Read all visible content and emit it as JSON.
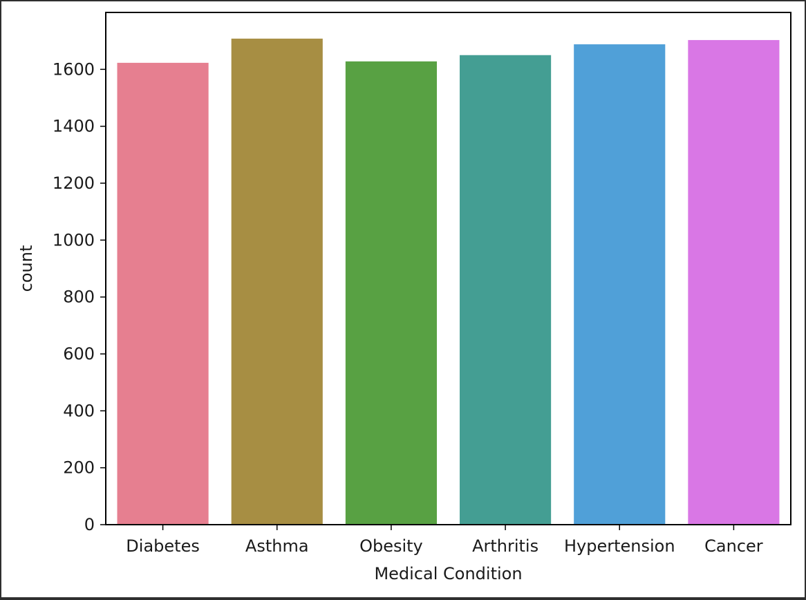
{
  "chart_data": {
    "type": "bar",
    "title": "",
    "xlabel": "Medical Condition",
    "ylabel": "count",
    "categories": [
      "Diabetes",
      "Asthma",
      "Obesity",
      "Arthritis",
      "Hypertension",
      "Cancer"
    ],
    "values": [
      1623,
      1708,
      1628,
      1650,
      1688,
      1703
    ],
    "colors": [
      "#e67f90",
      "#a78e43",
      "#58a143",
      "#449e93",
      "#50a0d8",
      "#d977e5"
    ],
    "ylim": [
      0,
      1800
    ],
    "yticks": [
      0,
      200,
      400,
      600,
      800,
      1000,
      1200,
      1400,
      1600
    ],
    "ytick_labels": [
      "0",
      "200",
      "400",
      "600",
      "800",
      "1000",
      "1200",
      "1400",
      "1600"
    ],
    "grid": false,
    "legend": "none"
  }
}
